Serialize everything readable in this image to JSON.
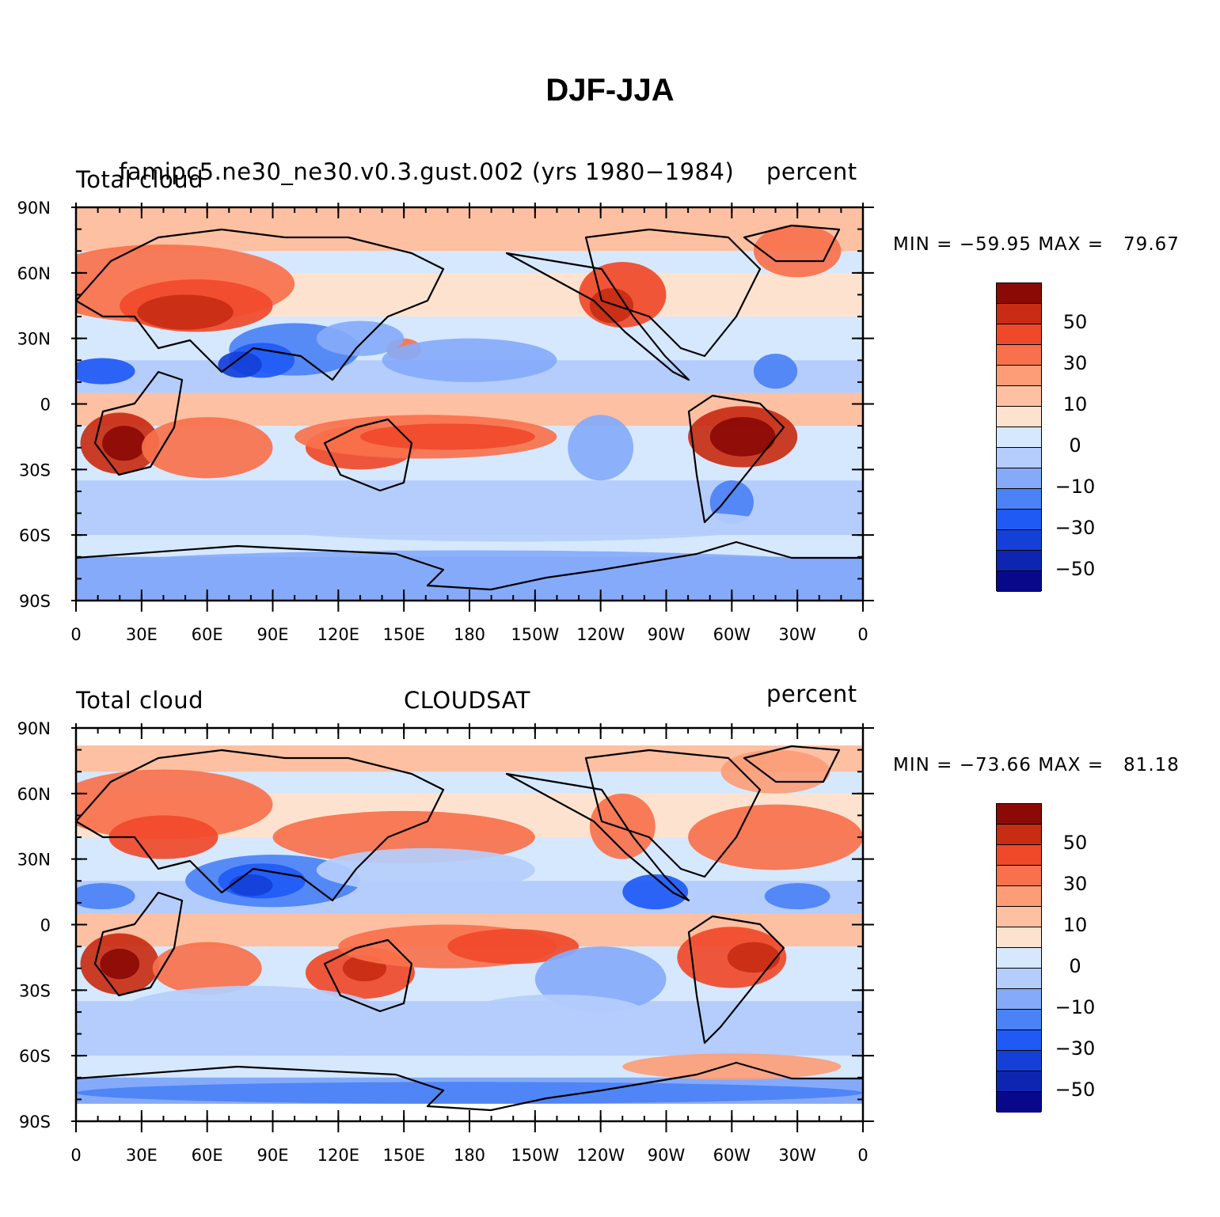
{
  "title": "DJF-JJA",
  "colorbar": {
    "colors": [
      "#08088a",
      "#0d25b0",
      "#1540d8",
      "#1f5af5",
      "#4b82f5",
      "#85aafa",
      "#b4cdfc",
      "#d6e8fe",
      "#fde3cf",
      "#fdc0a2",
      "#fc9d78",
      "#f8714c",
      "#f0492a",
      "#c82c13",
      "#8b0a05"
    ],
    "labels": [
      "50",
      "30",
      "10",
      "0",
      "−10",
      "−30",
      "−50"
    ]
  },
  "axes": {
    "lat_labels": [
      "90N",
      "60N",
      "30N",
      "0",
      "30S",
      "60S",
      "90S"
    ],
    "lon_labels": [
      "0",
      "30E",
      "60E",
      "90E",
      "120E",
      "150E",
      "180",
      "150W",
      "120W",
      "90W",
      "60W",
      "30W",
      "0"
    ]
  },
  "panels": [
    {
      "left_label": "Total cloud",
      "center_label": "famipc5.ne30_ne30.v0.3.gust.002 (yrs 1980−1984)",
      "right_label": "percent",
      "min_label": "MIN",
      "min_value": "−59.95",
      "max_label": "MAX",
      "max_value": "79.67"
    },
    {
      "left_label": "Total cloud",
      "center_label": "CLOUDSAT",
      "right_label": "percent",
      "min_label": "MIN",
      "min_value": "−73.66",
      "max_label": "MAX",
      "max_value": "81.18"
    }
  ]
}
